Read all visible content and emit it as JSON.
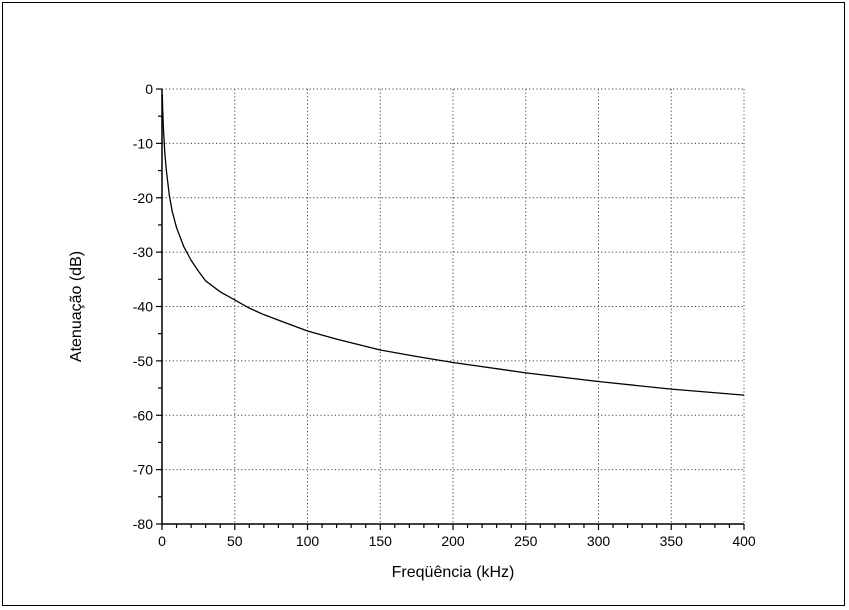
{
  "chart_data": {
    "type": "line",
    "title": "",
    "xlabel": "Freqüência (kHz)",
    "ylabel": "Atenuação (dB)",
    "xlim": [
      0,
      400
    ],
    "ylim": [
      -80,
      0
    ],
    "xticks": [
      0,
      50,
      100,
      150,
      200,
      250,
      300,
      350,
      400
    ],
    "xtick_labels": [
      "0",
      "50",
      "100",
      "150",
      "200",
      "250",
      "300",
      "350",
      "400"
    ],
    "yticks": [
      0,
      -10,
      -20,
      -30,
      -40,
      -50,
      -60,
      -70,
      -80
    ],
    "ytick_labels": [
      "0",
      "-10",
      "-20",
      "-30",
      "-40",
      "-50",
      "-60",
      "-70",
      "-80"
    ],
    "grid": true,
    "grid_style": "dotted",
    "legend": "none",
    "series": [
      {
        "color": "#000000",
        "x": [
          0.2,
          0.5,
          1,
          2,
          3,
          5,
          7,
          10,
          15,
          20,
          25,
          30,
          40,
          50,
          60,
          70,
          80,
          100,
          120,
          150,
          175,
          200,
          250,
          300,
          350,
          400
        ],
        "y": [
          -1,
          -4,
          -7.5,
          -12,
          -15,
          -19.5,
          -22.5,
          -25.5,
          -29,
          -31.5,
          -33.5,
          -35.3,
          -37.3,
          -38.8,
          -40.3,
          -41.5,
          -42.5,
          -44.5,
          -46,
          -48,
          -49.2,
          -50.3,
          -52.2,
          -53.8,
          -55.2,
          -56.3
        ]
      }
    ]
  }
}
